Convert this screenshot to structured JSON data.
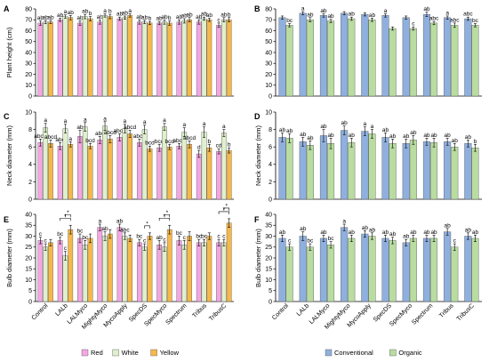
{
  "colors": {
    "Red": "#f4a6e2",
    "White": "#dff0cc",
    "Yellow": "#f6b84a",
    "Conventional": "#8fb0de",
    "Organic": "#b9dca0"
  },
  "chart_data": [
    {
      "id": "A",
      "panel_label": "A",
      "type": "bar",
      "ylabel": "Plant height (cm)",
      "ylim": [
        0,
        80
      ],
      "yticks": [
        0,
        10,
        20,
        30,
        40,
        50,
        60,
        70,
        80
      ],
      "categories": [
        "Control",
        "LALb",
        "LALMyco",
        "MightyMyco",
        "MycoApply",
        "SpecDS",
        "SpecMyco",
        "Spectrum",
        "Tribus",
        "TribusC"
      ],
      "series": [
        {
          "name": "Red",
          "values": [
            67,
            70,
            67,
            68,
            71,
            68,
            67,
            68,
            68,
            65
          ],
          "errors": [
            2,
            1.5,
            2,
            2,
            1.5,
            2,
            1.5,
            2,
            2,
            2
          ],
          "letters": [
            "ab",
            "ab",
            "ab",
            "ab",
            "ab",
            "ab",
            "ab",
            "ab",
            "ab",
            "c"
          ]
        },
        {
          "name": "White",
          "values": [
            68,
            73,
            73,
            74,
            72,
            68,
            68,
            69,
            71,
            70
          ],
          "errors": [
            1.5,
            1.5,
            2,
            1.5,
            1.5,
            1.5,
            2,
            2,
            1.5,
            2
          ],
          "letters": [
            "ab",
            "a",
            "ab",
            "a",
            "ab",
            "ab",
            "ab",
            "ab",
            "ab",
            "ab"
          ]
        },
        {
          "name": "Yellow",
          "values": [
            68,
            72,
            71,
            73,
            74,
            67,
            67,
            70,
            70,
            70
          ],
          "errors": [
            1.5,
            2,
            2,
            2,
            1.5,
            1.5,
            2,
            2,
            1.5,
            2
          ],
          "letters": [
            "ab",
            "ab",
            "b",
            "b",
            "a",
            "b",
            "b",
            "ab",
            "ab",
            "b"
          ]
        }
      ]
    },
    {
      "id": "B",
      "panel_label": "B",
      "type": "bar",
      "ylabel": "",
      "ylim": [
        0,
        80
      ],
      "yticks": [
        0,
        10,
        20,
        30,
        40,
        50,
        60,
        70,
        80
      ],
      "categories": [
        "Control",
        "LALb",
        "LALMyco",
        "MightyMyco",
        "MycoApply",
        "SpecDS",
        "SpecMyco",
        "Spectrum",
        "Tribus",
        "TribusC"
      ],
      "series": [
        {
          "name": "Conventional",
          "values": [
            72,
            76,
            74,
            76,
            75,
            74,
            72,
            75,
            72,
            71
          ],
          "errors": [
            1.5,
            1.5,
            1.5,
            1.5,
            1.5,
            1.5,
            1.5,
            2,
            1.5,
            1.5
          ],
          "letters": [
            "",
            "a",
            "ab",
            "",
            "",
            "a",
            "",
            "ab",
            "a",
            "abc"
          ]
        },
        {
          "name": "Organic",
          "values": [
            65,
            70,
            69,
            71,
            70,
            62,
            62,
            67,
            65,
            65
          ],
          "errors": [
            1.5,
            2,
            1.5,
            1.5,
            1.5,
            1.5,
            1.5,
            1.5,
            2,
            1.5
          ],
          "letters": [
            "bc",
            "ab",
            "ab",
            "ab",
            "ab",
            "",
            "c",
            "abc",
            "abc",
            "bc"
          ]
        }
      ]
    },
    {
      "id": "C",
      "panel_label": "C",
      "type": "bar",
      "ylabel": "Neck diameter (mm)",
      "ylim": [
        0,
        10
      ],
      "yticks": [
        0,
        2,
        4,
        6,
        8,
        10
      ],
      "categories": [
        "Control",
        "LALb",
        "LALMyco",
        "MightyMyco",
        "MycoApply",
        "SpecDS",
        "SpecMyco",
        "Spectrum",
        "Tribus",
        "TribusC"
      ],
      "series": [
        {
          "name": "Red",
          "values": [
            6.5,
            6.1,
            7.2,
            6.8,
            7.1,
            6.5,
            5.9,
            6.1,
            5.2,
            5.5
          ],
          "errors": [
            0.4,
            0.4,
            0.7,
            0.4,
            0.4,
            0.4,
            0.4,
            0.3,
            0.4,
            0.3
          ],
          "letters": [
            "abcd",
            "abc",
            "ab",
            "abc",
            "abcd",
            "abcd",
            "bcd",
            "abcd",
            "d",
            "cd"
          ]
        },
        {
          "name": "White",
          "values": [
            8.2,
            8.1,
            8.3,
            8.4,
            8.1,
            8.0,
            8.3,
            7.7,
            7.7,
            7.6
          ],
          "errors": [
            0.5,
            0.5,
            0.5,
            0.5,
            0.5,
            0.5,
            0.4,
            0.5,
            0.6,
            0.4
          ],
          "letters": [
            "a",
            "a",
            "a",
            "a",
            "a",
            "a",
            "a",
            "a",
            "a",
            "a"
          ]
        },
        {
          "name": "Yellow",
          "values": [
            6.4,
            6.3,
            6.1,
            6.9,
            7.5,
            5.8,
            6.0,
            6.3,
            5.9,
            5.6
          ],
          "errors": [
            0.4,
            0.3,
            0.3,
            0.4,
            0.4,
            0.3,
            0.3,
            0.4,
            0.4,
            0.3
          ],
          "letters": [
            "abcd",
            "a",
            "bcd",
            "abcd",
            "abcd",
            "bcd",
            "bcd",
            "abcd",
            "b",
            "b"
          ]
        }
      ]
    },
    {
      "id": "D",
      "panel_label": "D",
      "type": "bar",
      "ylabel": "Neck diameter (mm)",
      "ylim": [
        0,
        10
      ],
      "yticks": [
        0,
        2,
        4,
        6,
        8,
        10
      ],
      "categories": [
        "Control",
        "LALb",
        "LALMyco",
        "MightyMyco",
        "MycoApply",
        "SpecDS",
        "SpecMyco",
        "Spectrum",
        "Tribus",
        "TribusC"
      ],
      "series": [
        {
          "name": "Conventional",
          "values": [
            7.1,
            6.6,
            7.3,
            7.9,
            7.8,
            7.1,
            6.4,
            6.6,
            6.6,
            6.4
          ],
          "errors": [
            0.5,
            0.5,
            0.7,
            0.5,
            0.5,
            0.5,
            0.5,
            0.4,
            0.4,
            0.4
          ],
          "letters": [
            "ab",
            "ab",
            "ab",
            "ab",
            "a",
            "ab",
            "ab",
            "ab",
            "ab",
            "ab"
          ]
        },
        {
          "name": "Organic",
          "values": [
            7.0,
            6.2,
            6.4,
            6.5,
            7.5,
            6.4,
            6.8,
            6.5,
            6.0,
            5.9
          ],
          "errors": [
            0.5,
            0.5,
            0.6,
            0.5,
            0.5,
            0.5,
            0.5,
            0.5,
            0.4,
            0.4
          ],
          "letters": [
            "ab",
            "ab",
            "ab",
            "ab",
            "a",
            "ab",
            "ab",
            "ab",
            "ab",
            "b"
          ]
        }
      ]
    },
    {
      "id": "E",
      "panel_label": "E",
      "type": "bar",
      "ylabel": "Bulb diameter (mm)",
      "ylim": [
        0,
        40
      ],
      "yticks": [
        0,
        5,
        10,
        15,
        20,
        25,
        30,
        35,
        40
      ],
      "categories": [
        "Control",
        "LALb",
        "LALMyco",
        "MightyMyco",
        "MycoApply",
        "SpecDS",
        "SpecMyco",
        "Spectrum",
        "Tribus",
        "TribusC"
      ],
      "series": [
        {
          "name": "Red",
          "values": [
            28,
            28,
            29,
            34,
            34,
            27,
            26,
            28,
            27,
            27
          ],
          "errors": [
            1.5,
            1.5,
            2,
            1.5,
            1.5,
            1.5,
            2,
            2,
            1.5,
            1.5
          ],
          "letters": [
            "c",
            "bc",
            "bc",
            "a",
            "ab",
            "bc",
            "ab",
            "bc",
            "bc",
            "c"
          ]
        },
        {
          "name": "White",
          "values": [
            25,
            21,
            26,
            30,
            30,
            25,
            25,
            26,
            27,
            27
          ],
          "errors": [
            1.5,
            2,
            2,
            2,
            1.5,
            1.5,
            2,
            2,
            1.5,
            1.5
          ],
          "letters": [
            "c",
            "c",
            "bc",
            "ab",
            "abc",
            "c",
            "c",
            "c",
            "bc",
            "c"
          ]
        },
        {
          "name": "Yellow",
          "values": [
            27,
            33,
            29,
            31,
            29,
            30,
            33,
            30,
            30,
            36
          ],
          "errors": [
            1.5,
            2,
            2,
            2,
            1.5,
            1.5,
            2,
            2,
            1.5,
            2
          ],
          "letters": [
            "",
            "",
            "",
            "",
            "",
            "",
            "",
            "",
            "",
            ""
          ]
        }
      ],
      "brackets": [
        {
          "category_index": 1,
          "from": 0,
          "to": 2,
          "label": "*"
        },
        {
          "category_index": 1,
          "from": 1,
          "to": 2,
          "label": "*"
        },
        {
          "category_index": 5,
          "from": 1,
          "to": 2,
          "label": "*"
        },
        {
          "category_index": 6,
          "from": 0,
          "to": 2,
          "label": "*"
        },
        {
          "category_index": 6,
          "from": 1,
          "to": 2,
          "label": "*"
        },
        {
          "category_index": 9,
          "from": 0,
          "to": 2,
          "label": "*"
        },
        {
          "category_index": 9,
          "from": 1,
          "to": 2,
          "label": "*"
        }
      ]
    },
    {
      "id": "F",
      "panel_label": "F",
      "type": "bar",
      "ylabel": "Bulb diameter (mm)",
      "ylim": [
        0,
        40
      ],
      "yticks": [
        0,
        5,
        10,
        15,
        20,
        25,
        30,
        35,
        40
      ],
      "categories": [
        "Control",
        "LALb",
        "LALMyco",
        "MightyMyco",
        "MycoApply",
        "SpecDS",
        "SpecMyco",
        "Spectrum",
        "Tribus",
        "TribusC"
      ],
      "series": [
        {
          "name": "Conventional",
          "values": [
            29,
            30,
            29,
            34,
            31,
            29,
            27,
            29,
            32,
            30
          ],
          "errors": [
            1.5,
            2,
            1.5,
            1.5,
            1.5,
            1.5,
            1.5,
            1.5,
            1.5,
            1.5
          ],
          "letters": [
            "ab",
            "ab",
            "ab",
            "a",
            "ab",
            "ab",
            "ab",
            "ab",
            "ab",
            "ab"
          ]
        },
        {
          "name": "Organic",
          "values": [
            25,
            25,
            26,
            29,
            30,
            28,
            29,
            29,
            25,
            29
          ],
          "errors": [
            1.5,
            1.5,
            1.5,
            1.5,
            1.5,
            1.5,
            1.5,
            1.5,
            1.5,
            1.5
          ],
          "letters": [
            "c",
            "bc",
            "bc",
            "ab",
            "ab",
            "ab",
            "ab",
            "ab",
            "c",
            "ab"
          ]
        }
      ]
    }
  ],
  "legends": {
    "left": [
      "Red",
      "White",
      "Yellow"
    ],
    "right": [
      "Conventional",
      "Organic"
    ]
  }
}
